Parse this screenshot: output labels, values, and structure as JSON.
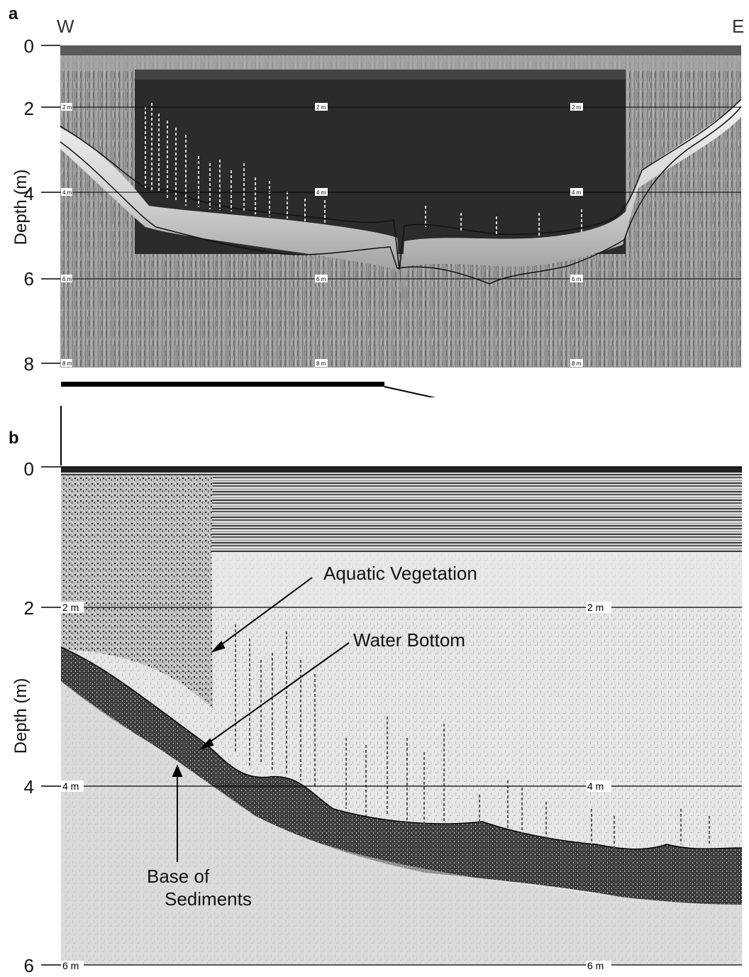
{
  "panel_a": {
    "letter": "a",
    "west_label": "W",
    "east_label": "E",
    "ylabel": "Depth (m)",
    "y_ticks": [
      "0",
      "2",
      "4",
      "6",
      "8"
    ],
    "gridline_labels": {
      "row_2": [
        "2 m",
        "2 m",
        "2 m"
      ],
      "row_4": [
        "4 m",
        "4 m",
        "4 m"
      ],
      "row_6": [
        "6 m",
        "6 m",
        "6 m"
      ],
      "row_8": [
        "8 m",
        "8 m",
        "8 m"
      ]
    }
  },
  "panel_b": {
    "letter": "b",
    "ylabel": "Depth (m)",
    "y_ticks": [
      "0",
      "2",
      "4",
      "6"
    ],
    "gridline_labels": {
      "row_2": [
        "2 m",
        "2 m"
      ],
      "row_4": [
        "4 m",
        "4 m"
      ],
      "row_6": [
        "6 m",
        "6 m"
      ]
    },
    "annotations": {
      "aquatic_vegetation": "Aquatic Vegetation",
      "water_bottom": "Water Bottom",
      "base_of_sediments_line1": "Base of",
      "base_of_sediments_line2": "Sediments"
    }
  },
  "colors": {
    "dark_water": "#2b2b2b",
    "echo_light": "#e8e8e8",
    "sediment_gray": "#8a8a8a",
    "text": "#111111"
  }
}
